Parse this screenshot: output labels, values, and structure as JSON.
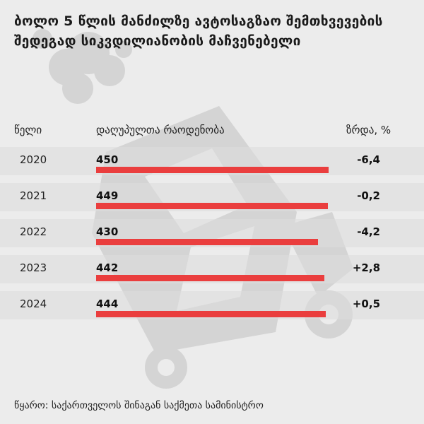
{
  "title": "ბოლო 5 წლის მანძილზე ავტოსაგზაო შემთხვევების შედეგად სიკვდილიანობის მაჩვენებელი",
  "columns": {
    "year": "წელი",
    "deaths": "დაღუპულთა რაოდენობა",
    "growth": "ზრდა, %"
  },
  "source": "წყარო: საქართველოს შინაგან საქმეთა სამინისტრო",
  "colors": {
    "bar": "#ea3e3e",
    "background": "#ececec",
    "watermark": "#d6d6d6"
  },
  "watermark_icon": "crashed-car-icon",
  "chart_data": {
    "type": "bar",
    "orientation": "horizontal",
    "categories": [
      "2020",
      "2021",
      "2022",
      "2023",
      "2024"
    ],
    "values": [
      450,
      449,
      430,
      442,
      444
    ],
    "growth_labels": [
      "-6,4",
      "-0,2",
      "-4,2",
      "+2,8",
      "+0,5"
    ],
    "value_labels": [
      "450",
      "449",
      "430",
      "442",
      "444"
    ]
  }
}
